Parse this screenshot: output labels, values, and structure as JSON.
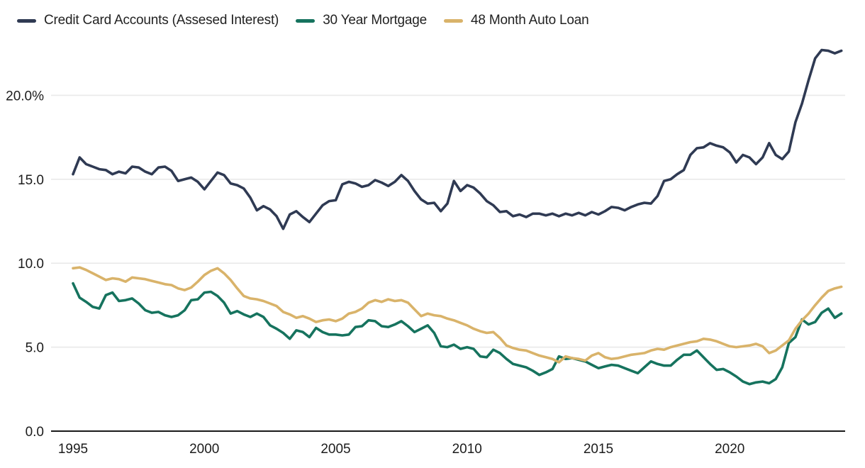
{
  "legend": {
    "items": [
      {
        "label": "Credit Card Accounts (Assesed Interest)",
        "color": "#2f3a53"
      },
      {
        "label": "30 Year Mortgage",
        "color": "#16735e"
      },
      {
        "label": "48 Month Auto Loan",
        "color": "#d9b36a"
      }
    ]
  },
  "chart_data": {
    "type": "line",
    "title": "",
    "xlabel": "",
    "ylabel": "",
    "x_start": 1995,
    "x_step": 0.25,
    "x_end": 2024.25,
    "xlim": [
      1994.15,
      2025.3
    ],
    "ylim": [
      0,
      23.4
    ],
    "x_ticks": [
      "1995",
      "2000",
      "2005",
      "2010",
      "2015",
      "2020"
    ],
    "y_ticks": [
      {
        "value": 0,
        "label": "0.0"
      },
      {
        "value": 5,
        "label": "5.0"
      },
      {
        "value": 10,
        "label": "10.0"
      },
      {
        "value": 15,
        "label": "15.0"
      },
      {
        "value": 20,
        "label": "20.0%"
      }
    ],
    "grid": "horizontal light gridlines at 5/10/15/20, dark baseline at 0",
    "legend_position": "top-left",
    "colors": {
      "grid": "#e9e9e9",
      "axis": "#1a1a1a",
      "text": "#1c1c1c"
    },
    "series": [
      {
        "name": "Credit Card Accounts (Assesed Interest)",
        "color": "#2f3a53",
        "values": [
          15.3,
          16.3,
          15.9,
          15.75,
          15.6,
          15.55,
          15.3,
          15.45,
          15.35,
          15.75,
          15.7,
          15.45,
          15.3,
          15.7,
          15.75,
          15.5,
          14.9,
          15.0,
          15.1,
          14.85,
          14.4,
          14.9,
          15.4,
          15.25,
          14.75,
          14.65,
          14.45,
          13.9,
          13.15,
          13.4,
          13.2,
          12.8,
          12.05,
          12.9,
          13.1,
          12.75,
          12.45,
          12.95,
          13.45,
          13.7,
          13.75,
          14.7,
          14.85,
          14.75,
          14.55,
          14.65,
          14.95,
          14.8,
          14.6,
          14.85,
          15.25,
          14.9,
          14.3,
          13.8,
          13.55,
          13.6,
          13.1,
          13.55,
          14.9,
          14.3,
          14.65,
          14.5,
          14.15,
          13.7,
          13.45,
          13.05,
          13.1,
          12.8,
          12.9,
          12.75,
          12.95,
          12.95,
          12.85,
          12.95,
          12.8,
          12.95,
          12.85,
          13.0,
          12.85,
          13.05,
          12.9,
          13.1,
          13.35,
          13.3,
          13.15,
          13.35,
          13.5,
          13.6,
          13.55,
          14.0,
          14.9,
          15.0,
          15.3,
          15.55,
          16.45,
          16.85,
          16.9,
          17.15,
          17.0,
          16.9,
          16.6,
          16.0,
          16.45,
          16.3,
          15.9,
          16.3,
          17.15,
          16.45,
          16.2,
          16.65,
          18.4,
          19.5,
          20.9,
          22.2,
          22.7,
          22.65,
          22.5,
          22.65
        ]
      },
      {
        "name": "30 Year Mortgage",
        "color": "#16735e",
        "values": [
          8.8,
          7.95,
          7.7,
          7.4,
          7.3,
          8.1,
          8.25,
          7.75,
          7.8,
          7.9,
          7.6,
          7.2,
          7.05,
          7.1,
          6.9,
          6.8,
          6.9,
          7.2,
          7.8,
          7.85,
          8.25,
          8.3,
          8.05,
          7.65,
          7.0,
          7.15,
          6.95,
          6.8,
          7.0,
          6.8,
          6.3,
          6.1,
          5.85,
          5.5,
          6.0,
          5.9,
          5.6,
          6.15,
          5.9,
          5.75,
          5.75,
          5.7,
          5.75,
          6.2,
          6.25,
          6.6,
          6.55,
          6.25,
          6.2,
          6.35,
          6.55,
          6.25,
          5.9,
          6.1,
          6.3,
          5.85,
          5.05,
          5.0,
          5.15,
          4.9,
          5.0,
          4.9,
          4.45,
          4.4,
          4.85,
          4.65,
          4.3,
          4.0,
          3.9,
          3.8,
          3.6,
          3.35,
          3.5,
          3.7,
          4.45,
          4.3,
          4.35,
          4.25,
          4.15,
          3.95,
          3.75,
          3.85,
          3.95,
          3.9,
          3.75,
          3.6,
          3.45,
          3.8,
          4.15,
          4.0,
          3.9,
          3.9,
          4.25,
          4.55,
          4.55,
          4.8,
          4.4,
          4.0,
          3.65,
          3.7,
          3.5,
          3.25,
          2.95,
          2.8,
          2.9,
          2.95,
          2.85,
          3.1,
          3.8,
          5.25,
          5.6,
          6.65,
          6.35,
          6.5,
          7.05,
          7.3,
          6.75,
          7.0
        ]
      },
      {
        "name": "48 Month Auto Loan",
        "color": "#d9b36a",
        "values": [
          9.7,
          9.75,
          9.6,
          9.4,
          9.2,
          9.0,
          9.1,
          9.05,
          8.9,
          9.15,
          9.1,
          9.05,
          8.95,
          8.85,
          8.75,
          8.7,
          8.5,
          8.4,
          8.55,
          8.9,
          9.3,
          9.55,
          9.7,
          9.4,
          9.0,
          8.5,
          8.05,
          7.9,
          7.85,
          7.75,
          7.6,
          7.45,
          7.1,
          6.95,
          6.75,
          6.85,
          6.7,
          6.5,
          6.6,
          6.65,
          6.55,
          6.7,
          7.0,
          7.1,
          7.3,
          7.65,
          7.8,
          7.7,
          7.85,
          7.75,
          7.8,
          7.65,
          7.25,
          6.85,
          7.0,
          6.9,
          6.85,
          6.7,
          6.6,
          6.45,
          6.3,
          6.1,
          5.95,
          5.85,
          5.9,
          5.55,
          5.1,
          4.95,
          4.85,
          4.8,
          4.65,
          4.5,
          4.4,
          4.3,
          4.1,
          4.45,
          4.35,
          4.3,
          4.2,
          4.5,
          4.65,
          4.4,
          4.3,
          4.35,
          4.45,
          4.55,
          4.6,
          4.65,
          4.8,
          4.9,
          4.85,
          5.0,
          5.1,
          5.2,
          5.3,
          5.35,
          5.5,
          5.45,
          5.35,
          5.2,
          5.05,
          5.0,
          5.05,
          5.1,
          5.2,
          5.05,
          4.65,
          4.8,
          5.1,
          5.4,
          6.1,
          6.6,
          7.0,
          7.5,
          7.95,
          8.35,
          8.5,
          8.6
        ]
      }
    ]
  }
}
